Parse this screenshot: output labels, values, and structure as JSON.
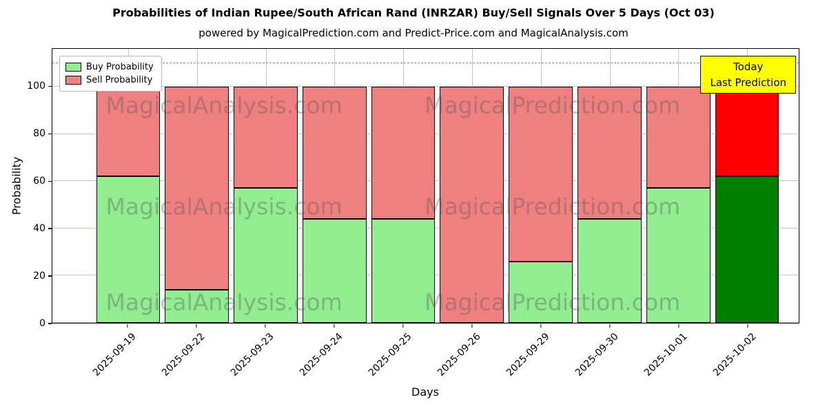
{
  "subtitle": "powered by MagicalPrediction.com and Predict-Price.com and MagicalAnalysis.com",
  "annotation": {
    "line1": "Today",
    "line2": "Last Prediction",
    "bg_color": "#ffff00"
  },
  "watermarks": {
    "left": "MagicalAnalysis.com",
    "right": "MagicalPrediction.com"
  },
  "chart_data": {
    "type": "bar",
    "stacked": true,
    "title": "Probabilities of Indian Rupee/South African Rand (INRZAR) Buy/Sell Signals Over 5 Days (Oct 03)",
    "xlabel": "Days",
    "ylabel": "Probability",
    "categories": [
      "2025-09-19",
      "2025-09-22",
      "2025-09-23",
      "2025-09-24",
      "2025-09-25",
      "2025-09-26",
      "2025-09-29",
      "2025-09-30",
      "2025-10-01",
      "2025-10-02"
    ],
    "series": [
      {
        "name": "Buy Probability",
        "color": "#90ee90",
        "today_color": "#008000",
        "values": [
          62,
          14,
          57,
          44,
          44,
          0,
          26,
          44,
          57,
          62
        ]
      },
      {
        "name": "Sell Probability",
        "color": "#f08080",
        "today_color": "#ff0000",
        "values": [
          38,
          86,
          43,
          56,
          56,
          100,
          74,
          56,
          43,
          38
        ]
      }
    ],
    "today_index": 9,
    "yticks": [
      0,
      20,
      40,
      60,
      80,
      100
    ],
    "ylim": [
      0,
      116
    ],
    "dashed_line_y": 110,
    "grid": true,
    "legend_position": "upper-left"
  }
}
